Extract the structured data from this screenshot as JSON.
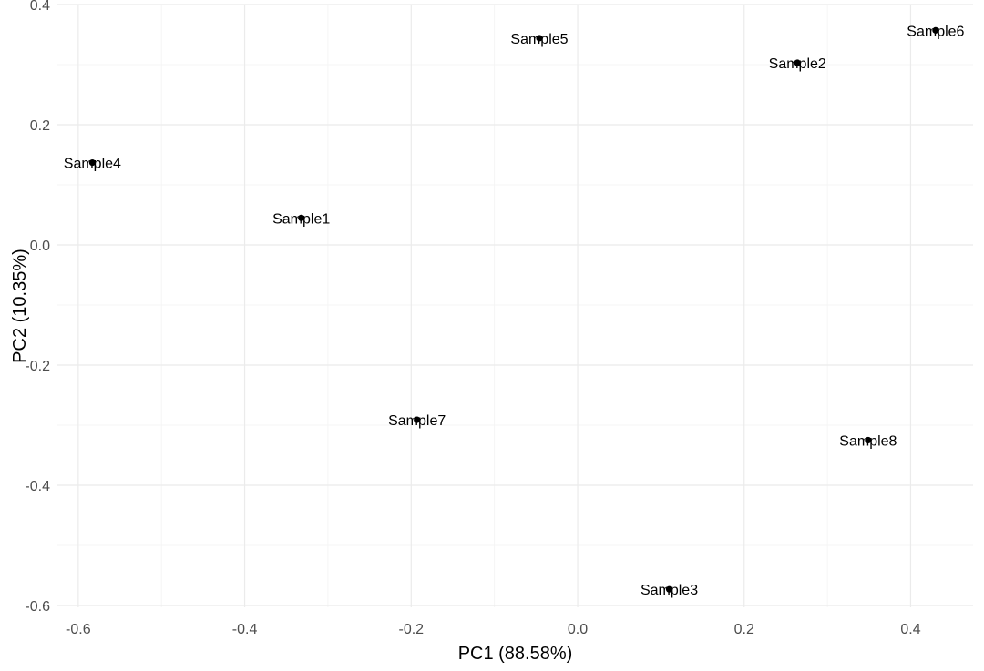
{
  "chart_data": {
    "type": "scatter",
    "title": "",
    "xlabel": "PC1 (88.58%)",
    "ylabel": "PC2 (10.35%)",
    "xlim": [
      -0.625,
      0.475
    ],
    "ylim": [
      -0.603,
      0.4
    ],
    "x_ticks": [
      -0.6,
      -0.4,
      -0.2,
      0.0,
      0.2,
      0.4
    ],
    "x_tick_labels": [
      "-0.6",
      "-0.4",
      "-0.2",
      "0.0",
      "0.2",
      "0.4"
    ],
    "y_ticks": [
      -0.6,
      -0.4,
      -0.2,
      0.0,
      0.2,
      0.4
    ],
    "y_tick_labels": [
      "-0.6",
      "-0.4",
      "-0.2",
      "0.0",
      "0.2",
      "0.4"
    ],
    "grid": true,
    "colors": {
      "point": "#000000",
      "grid": "#ebebeb",
      "tick_text": "#4d4d4d",
      "background": "#ffffff"
    },
    "points": [
      {
        "label": "Sample1",
        "x": -0.332,
        "y": 0.045
      },
      {
        "label": "Sample2",
        "x": 0.264,
        "y": 0.303
      },
      {
        "label": "Sample3",
        "x": 0.11,
        "y": -0.573
      },
      {
        "label": "Sample4",
        "x": -0.583,
        "y": 0.137
      },
      {
        "label": "Sample5",
        "x": -0.046,
        "y": 0.344
      },
      {
        "label": "Sample6",
        "x": 0.43,
        "y": 0.357
      },
      {
        "label": "Sample7",
        "x": -0.193,
        "y": -0.291
      },
      {
        "label": "Sample8",
        "x": 0.349,
        "y": -0.325
      }
    ]
  }
}
